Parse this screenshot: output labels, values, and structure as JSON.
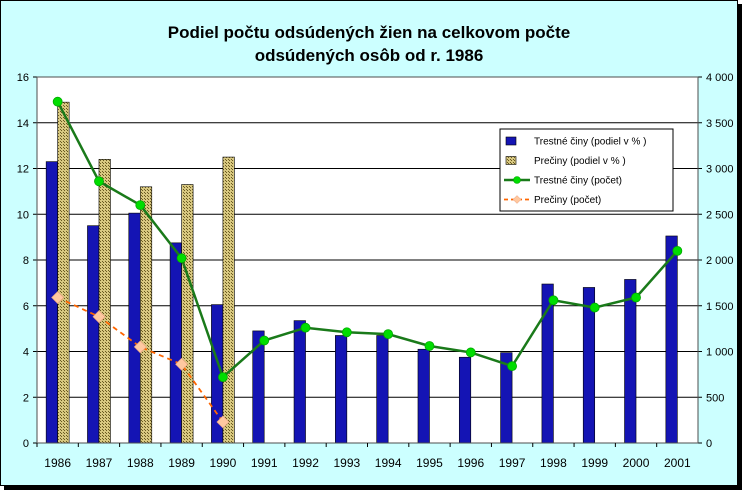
{
  "chart_data": {
    "title_line1": "Podiel počtu odsúdených žien na celkovom počte",
    "title_line2": "odsúdených osôb od r. 1986",
    "categories": [
      "1986",
      "1987",
      "1988",
      "1989",
      "1990",
      "1991",
      "1992",
      "1993",
      "1994",
      "1995",
      "1996",
      "1997",
      "1998",
      "1999",
      "2000",
      "2001"
    ],
    "y_left": {
      "min": 0,
      "max": 16,
      "ticks": [
        0,
        2,
        4,
        6,
        8,
        10,
        12,
        14,
        16
      ]
    },
    "y_right": {
      "min": 0,
      "max": 4000,
      "ticks": [
        0,
        500,
        1000,
        1500,
        2000,
        2500,
        3000,
        3500,
        4000
      ],
      "tick_labels": [
        "0",
        "500",
        "1 000",
        "1 500",
        "2 000",
        "2 500",
        "3 000",
        "3 500",
        "4 000"
      ]
    },
    "grid": true,
    "legend_position": "top-right",
    "series": [
      {
        "name": "Trestné činy (podiel v % )",
        "type": "bar",
        "axis": "left",
        "color": "#1414b4",
        "values": [
          12.3,
          9.5,
          10.05,
          8.75,
          6.05,
          4.9,
          5.35,
          4.7,
          4.7,
          4.1,
          3.75,
          3.95,
          6.95,
          6.8,
          7.15,
          9.05
        ]
      },
      {
        "name": "Prečiny (podiel v % )",
        "type": "bar",
        "axis": "left",
        "color": "#c8b45a",
        "values": [
          14.9,
          12.4,
          11.2,
          11.3,
          12.5,
          null,
          null,
          null,
          null,
          null,
          null,
          null,
          null,
          null,
          null,
          null
        ]
      },
      {
        "name": "Trestné činy (počet)",
        "type": "line",
        "axis": "right",
        "color": "#1a7a1a",
        "marker_color": "#00dd00",
        "values": [
          3730,
          2860,
          2600,
          2020,
          720,
          1120,
          1260,
          1210,
          1190,
          1060,
          990,
          840,
          1560,
          1480,
          1590,
          2100
        ]
      },
      {
        "name": "Prečiny (počet)",
        "type": "line",
        "axis": "right",
        "color": "#ff6600",
        "marker_color": "#ffc8a0",
        "values": [
          1590,
          1380,
          1050,
          860,
          230,
          null,
          null,
          null,
          null,
          null,
          null,
          null,
          null,
          null,
          null,
          null
        ]
      }
    ]
  }
}
